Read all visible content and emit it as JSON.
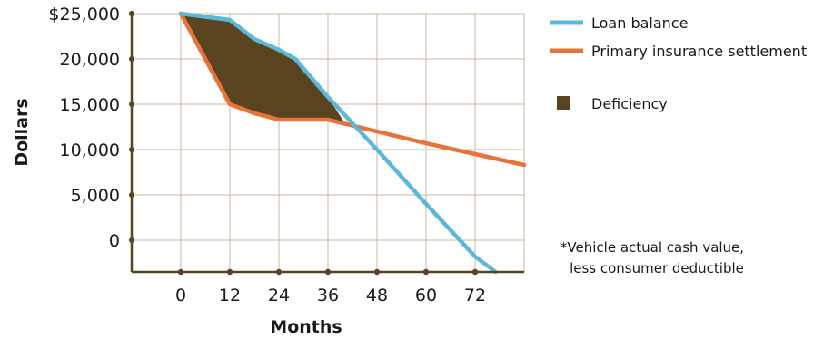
{
  "chart_data": {
    "type": "line",
    "title": "",
    "xlabel": "Months",
    "ylabel": "Dollars",
    "x_ticks": [
      "0",
      "12",
      "24",
      "36",
      "48",
      "60",
      "72"
    ],
    "y_ticks": [
      "0",
      "5,000",
      "10,000",
      "15,000",
      "20,000",
      "$25,000"
    ],
    "xlim": [
      -12,
      84
    ],
    "ylim": [
      -3500,
      25000
    ],
    "grid": true,
    "legend_position": "top-right",
    "series": [
      {
        "name": "Loan balance",
        "color": "#5bb8d8",
        "points": [
          [
            0,
            25000
          ],
          [
            12,
            24300
          ],
          [
            18,
            22200
          ],
          [
            24,
            21000
          ],
          [
            28,
            20000
          ],
          [
            36,
            15800
          ],
          [
            48,
            10000
          ],
          [
            60,
            4000
          ],
          [
            72,
            -1800
          ],
          [
            77,
            -3500
          ]
        ]
      },
      {
        "name": "Primary insurance settlement",
        "color": "#e8733a",
        "points": [
          [
            0,
            25000
          ],
          [
            12,
            15000
          ],
          [
            18,
            14000
          ],
          [
            24,
            13300
          ],
          [
            36,
            13300
          ],
          [
            48,
            12000
          ],
          [
            60,
            10700
          ],
          [
            72,
            9500
          ],
          [
            84,
            8300
          ]
        ]
      }
    ],
    "deficiency": {
      "name": "Deficiency",
      "color": "#5a4420"
    },
    "annotation": [
      "*Vehicle actual cash value,",
      "less consumer deductible"
    ]
  }
}
